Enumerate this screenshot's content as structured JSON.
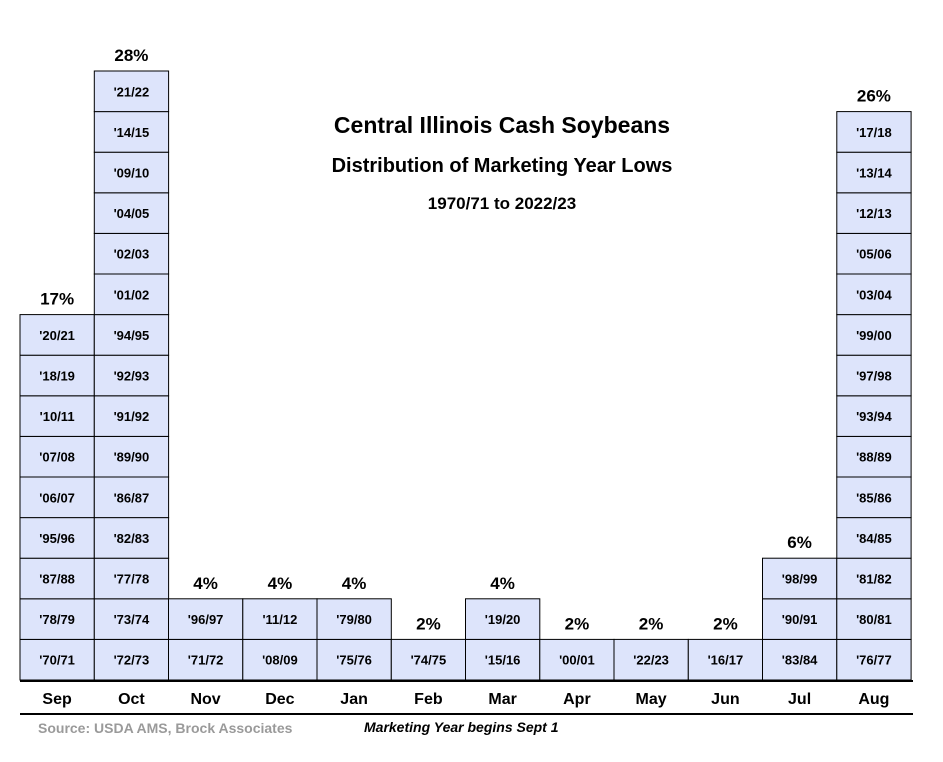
{
  "chart_data": {
    "type": "bar",
    "title": "Central Illinois Cash Soybeans",
    "subtitle": "Distribution of Marketing Year Lows",
    "period": "1970/71 to 2022/23",
    "categories": [
      "Sep",
      "Oct",
      "Nov",
      "Dec",
      "Jan",
      "Feb",
      "Mar",
      "Apr",
      "May",
      "Jun",
      "Jul",
      "Aug"
    ],
    "values": [
      17,
      28,
      4,
      4,
      4,
      2,
      4,
      2,
      2,
      2,
      6,
      26
    ],
    "value_labels": [
      "17%",
      "28%",
      "4%",
      "4%",
      "4%",
      "2%",
      "4%",
      "2%",
      "2%",
      "2%",
      "6%",
      "26%"
    ],
    "stacks": [
      [
        "'70/71",
        "'78/79",
        "'87/88",
        "'95/96",
        "'06/07",
        "'07/08",
        "'10/11",
        "'18/19",
        "'20/21"
      ],
      [
        "'72/73",
        "'73/74",
        "'77/78",
        "'82/83",
        "'86/87",
        "'89/90",
        "'91/92",
        "'92/93",
        "'94/95",
        "'01/02",
        "'02/03",
        "'04/05",
        "'09/10",
        "'14/15",
        "'21/22"
      ],
      [
        "'71/72",
        "'96/97"
      ],
      [
        "'08/09",
        "'11/12"
      ],
      [
        "'75/76",
        "'79/80"
      ],
      [
        "'74/75"
      ],
      [
        "'15/16",
        "'19/20"
      ],
      [
        "'00/01"
      ],
      [
        "'22/23"
      ],
      [
        "'16/17"
      ],
      [
        "'83/84",
        "'90/91",
        "'98/99"
      ],
      [
        "'76/77",
        "'80/81",
        "'81/82",
        "'84/85",
        "'85/86",
        "'88/89",
        "'93/94",
        "'97/98",
        "'99/00",
        "'03/04",
        "'05/06",
        "'12/13",
        "'13/14",
        "'17/18"
      ]
    ],
    "ylabel": "",
    "xlabel": "",
    "bar_color": "#dde4fb",
    "grid": false,
    "legend": "none"
  },
  "footer": {
    "source": "Source: USDA AMS, Brock Associates",
    "note": "Marketing Year begins Sept 1"
  }
}
